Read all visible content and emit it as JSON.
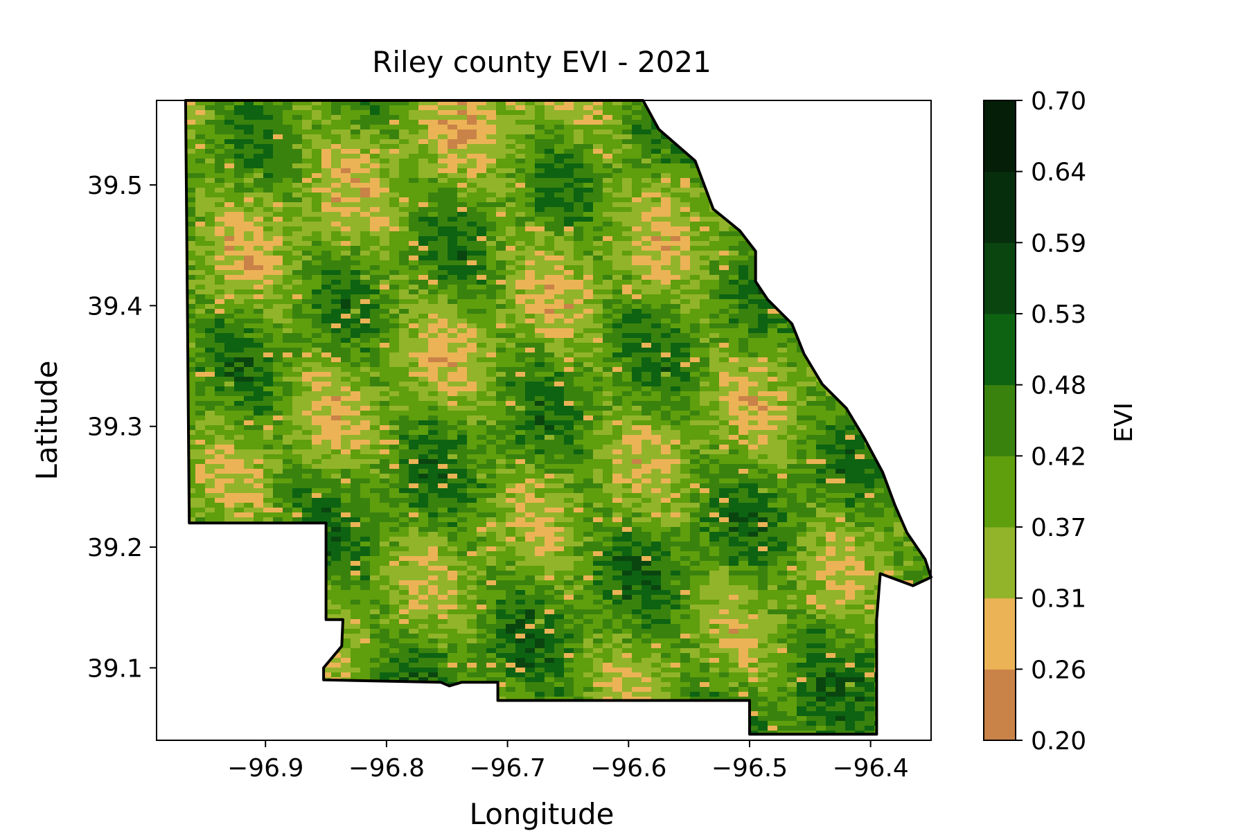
{
  "map": {
    "title": "Riley county EVI - 2021",
    "xlabel": "Longitude",
    "ylabel": "Latitude",
    "x_ticks": [
      "−96.9",
      "−96.8",
      "−96.7",
      "−96.6",
      "−96.5",
      "−96.4"
    ],
    "y_ticks": [
      "39.5",
      "39.4",
      "39.3",
      "39.2",
      "39.1"
    ],
    "colorbar": {
      "label": "EVI",
      "ticks": [
        "0.70",
        "0.64",
        "0.59",
        "0.53",
        "0.48",
        "0.42",
        "0.37",
        "0.31",
        "0.26",
        "0.20"
      ],
      "colors": [
        "#c98248",
        "#ecb356",
        "#92b42a",
        "#5f9e0d",
        "#3a820e",
        "#0d6312",
        "#0a4510",
        "#072e0c",
        "#041e08"
      ]
    }
  },
  "chart_data": {
    "type": "heatmap",
    "title": "Riley county EVI - 2021",
    "xlabel": "Longitude",
    "ylabel": "Latitude",
    "xlim": [
      -96.99,
      -96.35
    ],
    "ylim": [
      39.04,
      39.57
    ],
    "x_ticks": [
      -96.9,
      -96.8,
      -96.7,
      -96.6,
      -96.5,
      -96.4
    ],
    "y_ticks": [
      39.5,
      39.4,
      39.3,
      39.2,
      39.1
    ],
    "colorbar": {
      "label": "EVI",
      "range": [
        0.2,
        0.7
      ],
      "boundaries": [
        0.2,
        0.26,
        0.31,
        0.37,
        0.42,
        0.48,
        0.53,
        0.59,
        0.64,
        0.7
      ]
    },
    "boundary": [
      [
        -96.966,
        39.57
      ],
      [
        -96.588,
        39.57
      ],
      [
        -96.575,
        39.546
      ],
      [
        -96.545,
        39.52
      ],
      [
        -96.53,
        39.48
      ],
      [
        -96.508,
        39.462
      ],
      [
        -96.495,
        39.445
      ],
      [
        -96.495,
        39.42
      ],
      [
        -96.485,
        39.405
      ],
      [
        -96.465,
        39.385
      ],
      [
        -96.455,
        39.36
      ],
      [
        -96.44,
        39.335
      ],
      [
        -96.42,
        39.315
      ],
      [
        -96.405,
        39.29
      ],
      [
        -96.39,
        39.262
      ],
      [
        -96.38,
        39.235
      ],
      [
        -96.37,
        39.212
      ],
      [
        -96.355,
        39.19
      ],
      [
        -96.35,
        39.175
      ],
      [
        -96.365,
        39.168
      ],
      [
        -96.392,
        39.178
      ],
      [
        -96.395,
        39.14
      ],
      [
        -96.395,
        39.045
      ],
      [
        -96.5,
        39.045
      ],
      [
        -96.5,
        39.073
      ],
      [
        -96.708,
        39.073
      ],
      [
        -96.708,
        39.088
      ],
      [
        -96.738,
        39.088
      ],
      [
        -96.748,
        39.085
      ],
      [
        -96.755,
        39.088
      ],
      [
        -96.852,
        39.09
      ],
      [
        -96.852,
        39.1
      ],
      [
        -96.837,
        39.118
      ],
      [
        -96.836,
        39.14
      ],
      [
        -96.85,
        39.14
      ],
      [
        -96.85,
        39.22
      ],
      [
        -96.963,
        39.22
      ],
      [
        -96.966,
        39.57
      ]
    ]
  }
}
